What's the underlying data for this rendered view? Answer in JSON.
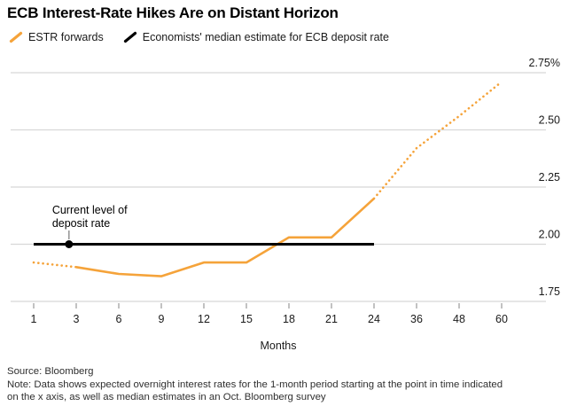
{
  "header": {
    "title": "ECB Interest-Rate Hikes Are on Distant Horizon"
  },
  "legend": [
    {
      "label": "ESTR forwards",
      "color": "#F5A33A",
      "icon": "orange-slash-icon"
    },
    {
      "label": "Economists' median estimate for ECB deposit rate",
      "color": "#000000",
      "icon": "black-slash-icon"
    }
  ],
  "chart_data": {
    "type": "line",
    "title": "ECB Interest-Rate Hikes Are on Distant Horizon",
    "xlabel": "Months",
    "ylabel": "",
    "x_categories": [
      "1",
      "3",
      "6",
      "9",
      "12",
      "15",
      "18",
      "21",
      "24",
      "36",
      "48",
      "60"
    ],
    "y_ticks": [
      2.75,
      2.5,
      2.25,
      2.0,
      1.75
    ],
    "y_tick_labels": [
      "2.75%",
      "2.50",
      "2.25",
      "2.00",
      "1.75"
    ],
    "ylim": [
      1.72,
      2.85
    ],
    "grid": "horizontal",
    "legend_position": "top-left",
    "series": [
      {
        "name": "ESTR forwards",
        "color": "#F5A33A",
        "values": [
          1.92,
          1.9,
          1.87,
          1.86,
          1.92,
          1.92,
          2.03,
          2.03,
          2.2,
          2.42,
          2.56,
          2.71
        ],
        "segments": [
          {
            "from": 0,
            "to": 1,
            "style": "dotted"
          },
          {
            "from": 1,
            "to": 8,
            "style": "solid"
          },
          {
            "from": 8,
            "to": 11,
            "style": "dotted"
          }
        ]
      },
      {
        "name": "Economists' median estimate for ECB deposit rate",
        "color": "#000000",
        "values": [
          2.0,
          2.0,
          2.0,
          2.0,
          2.0,
          2.0,
          2.0,
          2.0,
          2.0,
          null,
          null,
          null
        ],
        "segments": [
          {
            "from": 0,
            "to": 8,
            "style": "solid"
          }
        ]
      }
    ],
    "annotation": {
      "line1": "Current level of",
      "line2": "deposit rate",
      "x_index": 0.83,
      "value": 2.0
    }
  },
  "footer": {
    "source": "Source: Bloomberg",
    "note_lines": [
      "Note: Data shows expected overnight interest rates for the 1-month period starting at the point in time indicated",
      "on the x axis, as well as median estimates in an Oct. Bloomberg survey"
    ]
  }
}
